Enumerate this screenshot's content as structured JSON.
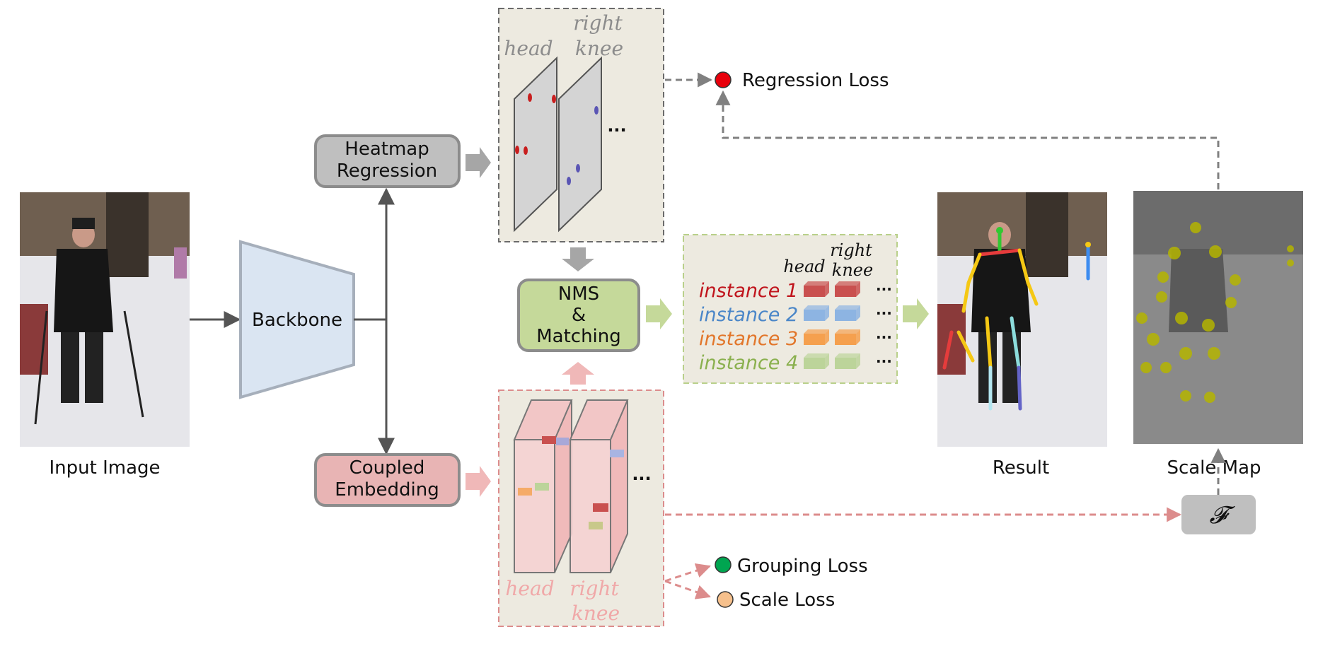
{
  "labels": {
    "input_image": "Input Image",
    "backbone": "Backbone",
    "heatmap_line1": "Heatmap",
    "heatmap_line2": "Regression",
    "coupled_line1": "Coupled",
    "coupled_line2": "Embedding",
    "nms_line1": "NMS",
    "nms_line2": "&",
    "nms_line3": "Matching",
    "result": "Result",
    "scale_map": "Scale Map",
    "scale_fn": "𝓕"
  },
  "heatmap_panel": {
    "col1": "head",
    "col2_line1": "right",
    "col2_line2": "knee",
    "ellipsis": "···"
  },
  "embedding_panel": {
    "col1": "head",
    "col2_line1": "right",
    "col2_line2": "knee",
    "ellipsis": "···"
  },
  "instance_panel": {
    "header_col1": "head",
    "header_col2_line1": "right",
    "header_col2_line2": "knee",
    "instances": [
      {
        "label": "instance 1",
        "color": "#c0141c",
        "block": "#c9504f"
      },
      {
        "label": "instance 2",
        "color": "#4a86c8",
        "block": "#8db4e2"
      },
      {
        "label": "instance 3",
        "color": "#e2762a",
        "block": "#f5a04e"
      },
      {
        "label": "instance 4",
        "color": "#8ab04e",
        "block": "#bcd49a"
      }
    ],
    "ellipsis": "···"
  },
  "losses": {
    "regression": {
      "label": "Regression Loss",
      "color": "#e8000b"
    },
    "grouping": {
      "label": "Grouping Loss",
      "color": "#00a550"
    },
    "scale": {
      "label": "Scale Loss",
      "color": "#f6c08c"
    }
  },
  "colors": {
    "heatmap_box": "#bfbfbf",
    "coupled_box": "#e8b4b4",
    "nms_box": "#c5d99a",
    "backbone": "#dae5f2",
    "panel_bg": "#edeae0",
    "fn_box": "#bfbfbf"
  }
}
